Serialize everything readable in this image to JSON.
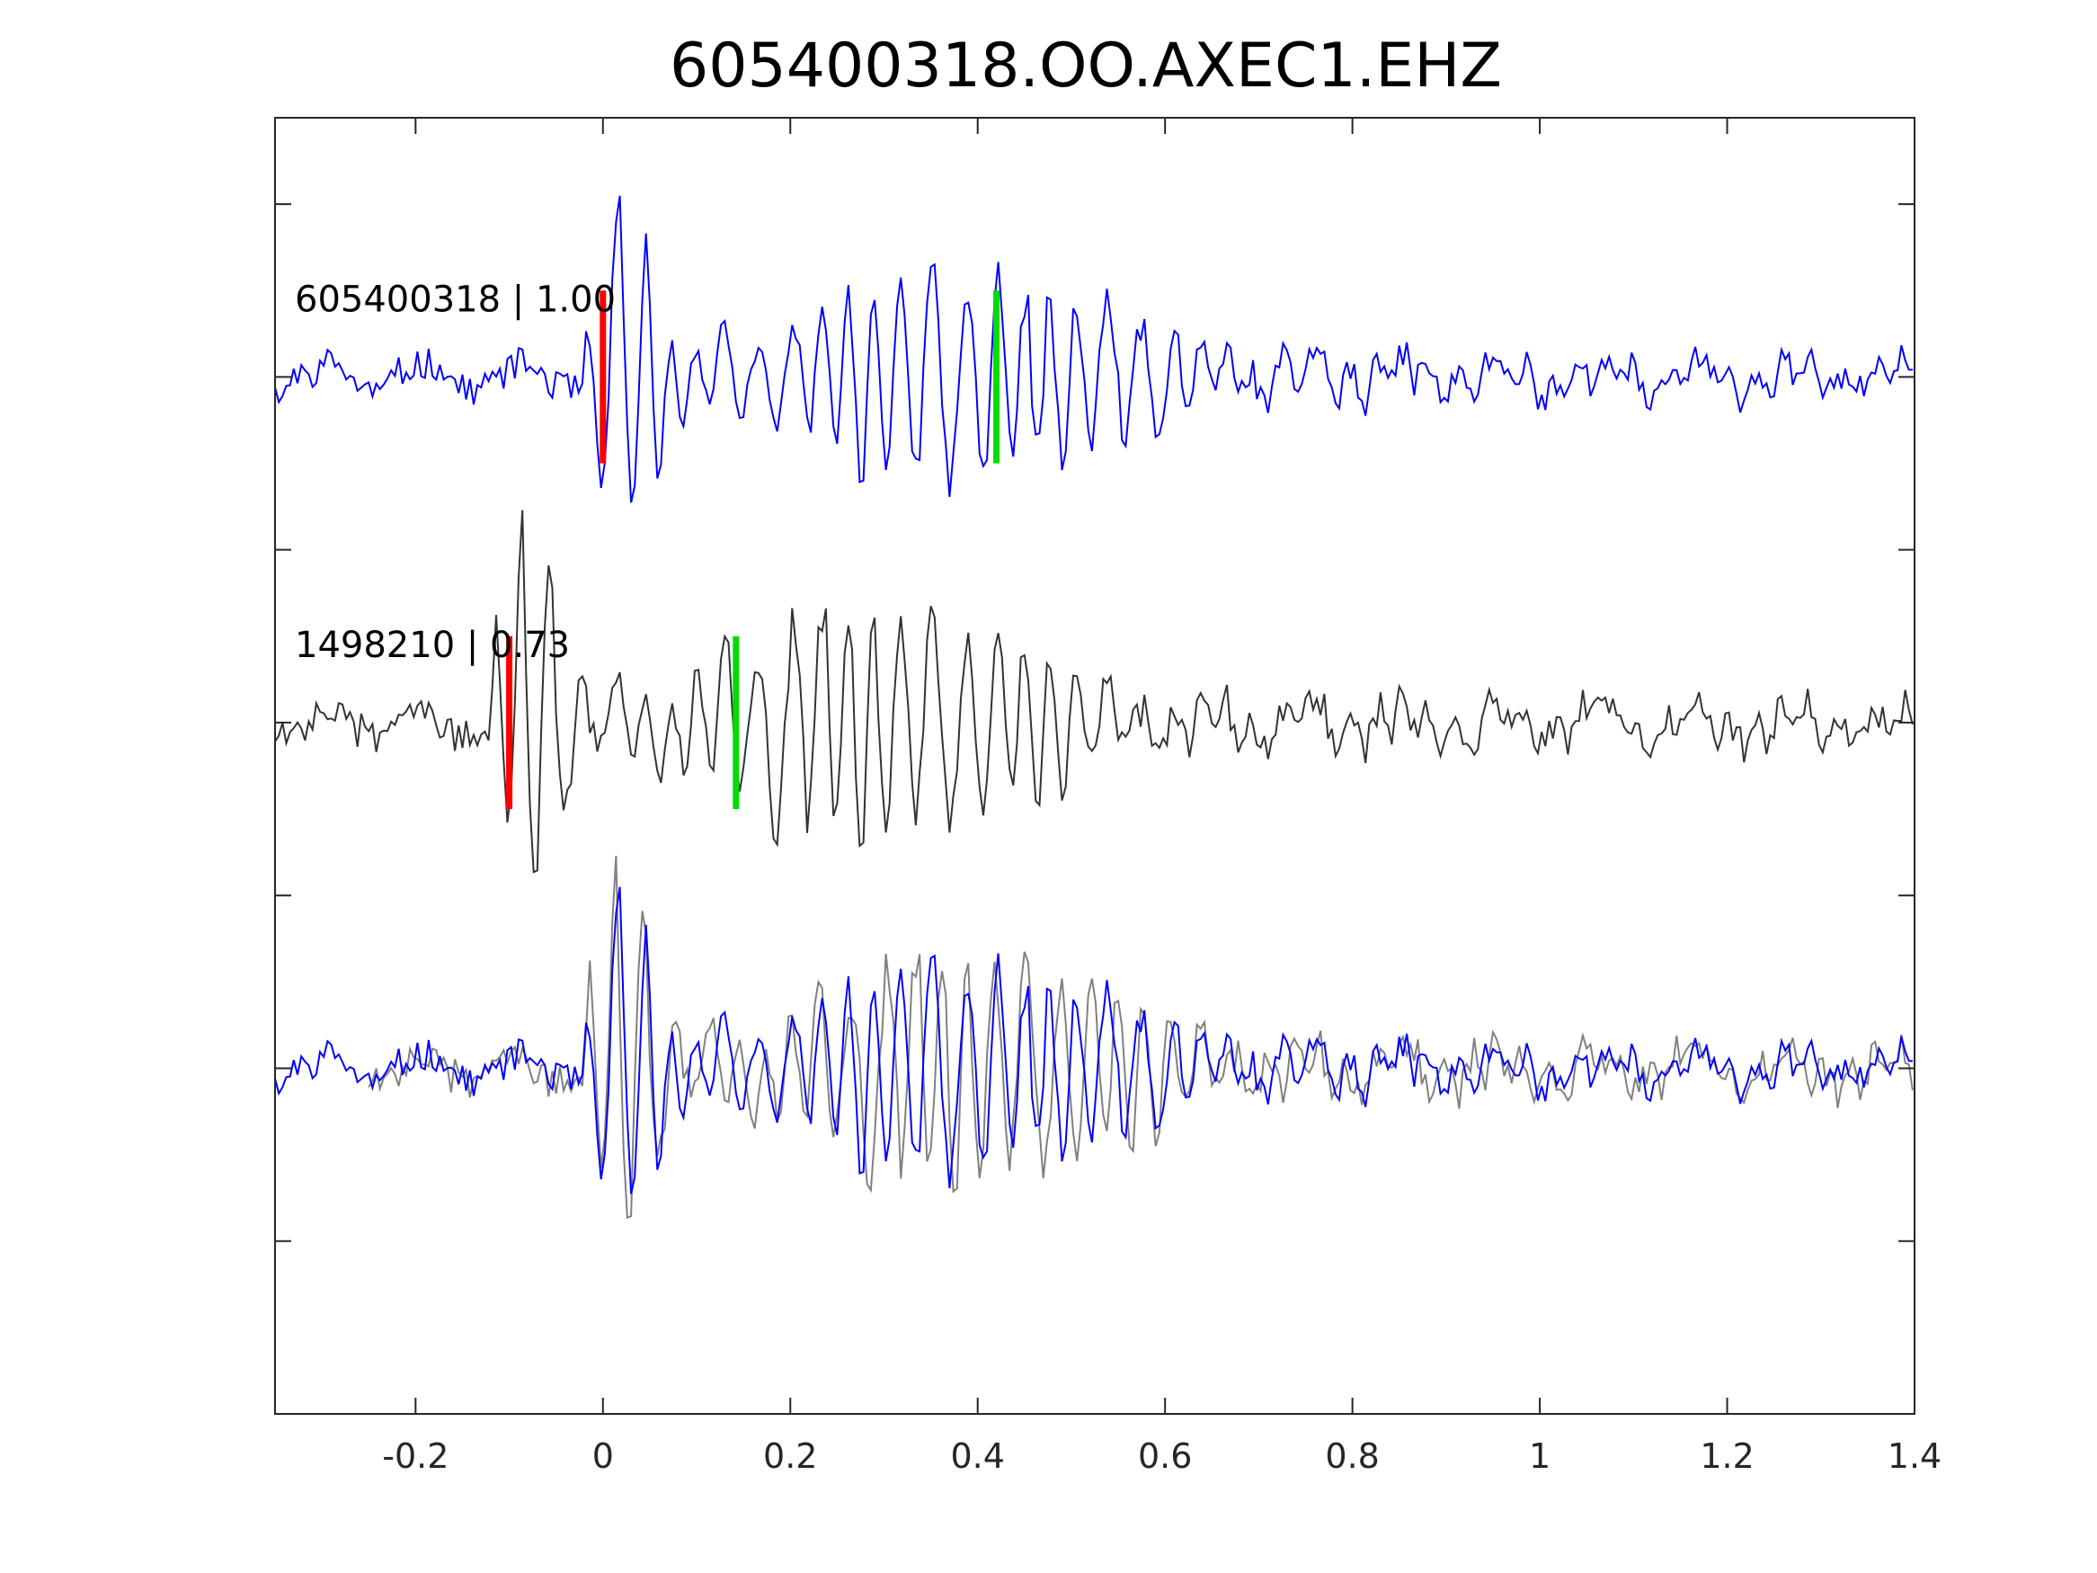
{
  "chart_data": {
    "type": "line",
    "title": "605400318.OO.AXEC1.EHZ",
    "xlabel": "",
    "ylabel": "",
    "xlim": [
      -0.35,
      1.4
    ],
    "xticks": [
      -0.2,
      0,
      0.2,
      0.4,
      0.6,
      0.8,
      1,
      1.2,
      1.4
    ],
    "xtick_labels": [
      "-0.2",
      "0",
      "0.2",
      "0.4",
      "0.6",
      "0.8",
      "1",
      "1.2",
      "1.4"
    ],
    "ylim": [
      -4,
      3.5
    ],
    "yticks": [
      -3,
      -2,
      -1,
      0,
      1,
      2,
      3
    ],
    "yticks_labeled": false,
    "grid": false,
    "colors": {
      "main_trace": "#0000ff",
      "reference_trace": "#333333",
      "overlay_reference": "#808080",
      "p_pick": "#ff0000",
      "s_pick": "#00dd00"
    },
    "traces": [
      {
        "label": "605400318 | 1.00",
        "offset": 2,
        "color_key": "main_trace",
        "shift": 0,
        "p_pick": 0.0,
        "s_pick": 0.42,
        "onset": 0.0
      },
      {
        "label": "1498210 | 0.73",
        "offset": 0,
        "color_key": "reference_trace",
        "shift": -0.1,
        "p_pick": -0.1,
        "s_pick": 0.142,
        "onset": -0.1
      }
    ],
    "overlay": {
      "offset": -2,
      "description_visible": false
    }
  }
}
